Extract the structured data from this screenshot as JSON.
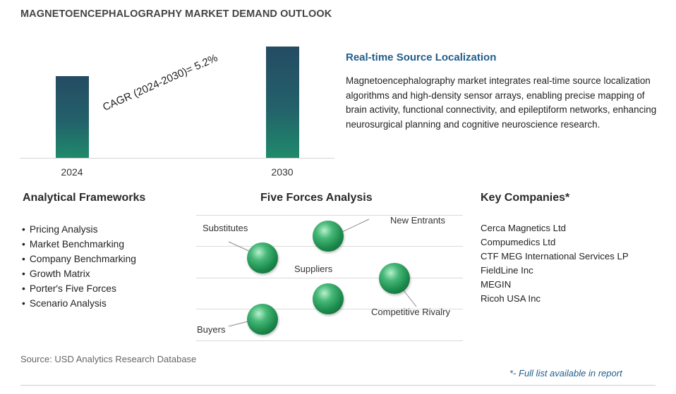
{
  "title": "MAGNETOENCEPHALOGRAPHY MARKET DEMAND OUTLOOK",
  "chart_data": {
    "type": "bar",
    "categories": [
      "2024",
      "2030"
    ],
    "values": [
      1.0,
      1.36
    ],
    "annotation": "CAGR (2024-2030)=  5.2%",
    "colors": {
      "bar_top": "#244b63",
      "bar_bottom": "#1f8a6b"
    }
  },
  "highlight": {
    "title": "Real-time Source Localization",
    "text": "Magnetoencephalography market integrates real-time source localization algorithms and high-density sensor arrays, enabling precise mapping of brain activity, functional connectivity, and epileptiform networks, enhancing neurosurgical planning and cognitive neuroscience research."
  },
  "frameworks": {
    "title": "Analytical Frameworks",
    "items": [
      "Pricing Analysis",
      "Market Benchmarking",
      "Company Benchmarking",
      "Growth Matrix",
      "Porter's Five Forces",
      "Scenario Analysis"
    ]
  },
  "five_forces": {
    "title": "Five Forces Analysis",
    "labels": {
      "substitutes": "Substitutes",
      "new_entrants": "New Entrants",
      "suppliers": "Suppliers",
      "competitive_rivalry": "Competitive Rivalry",
      "buyers": "Buyers"
    },
    "sphere_color": "#1b8a4c"
  },
  "companies": {
    "title": "Key Companies*",
    "items": [
      "Cerca Magnetics Ltd",
      "Compumedics Ltd",
      "CTF MEG International Services LP",
      "FieldLine Inc",
      "MEGIN",
      "Ricoh USA Inc"
    ]
  },
  "source": "Source: USD Analytics Research Database",
  "footnote": "*- Full list available in report"
}
